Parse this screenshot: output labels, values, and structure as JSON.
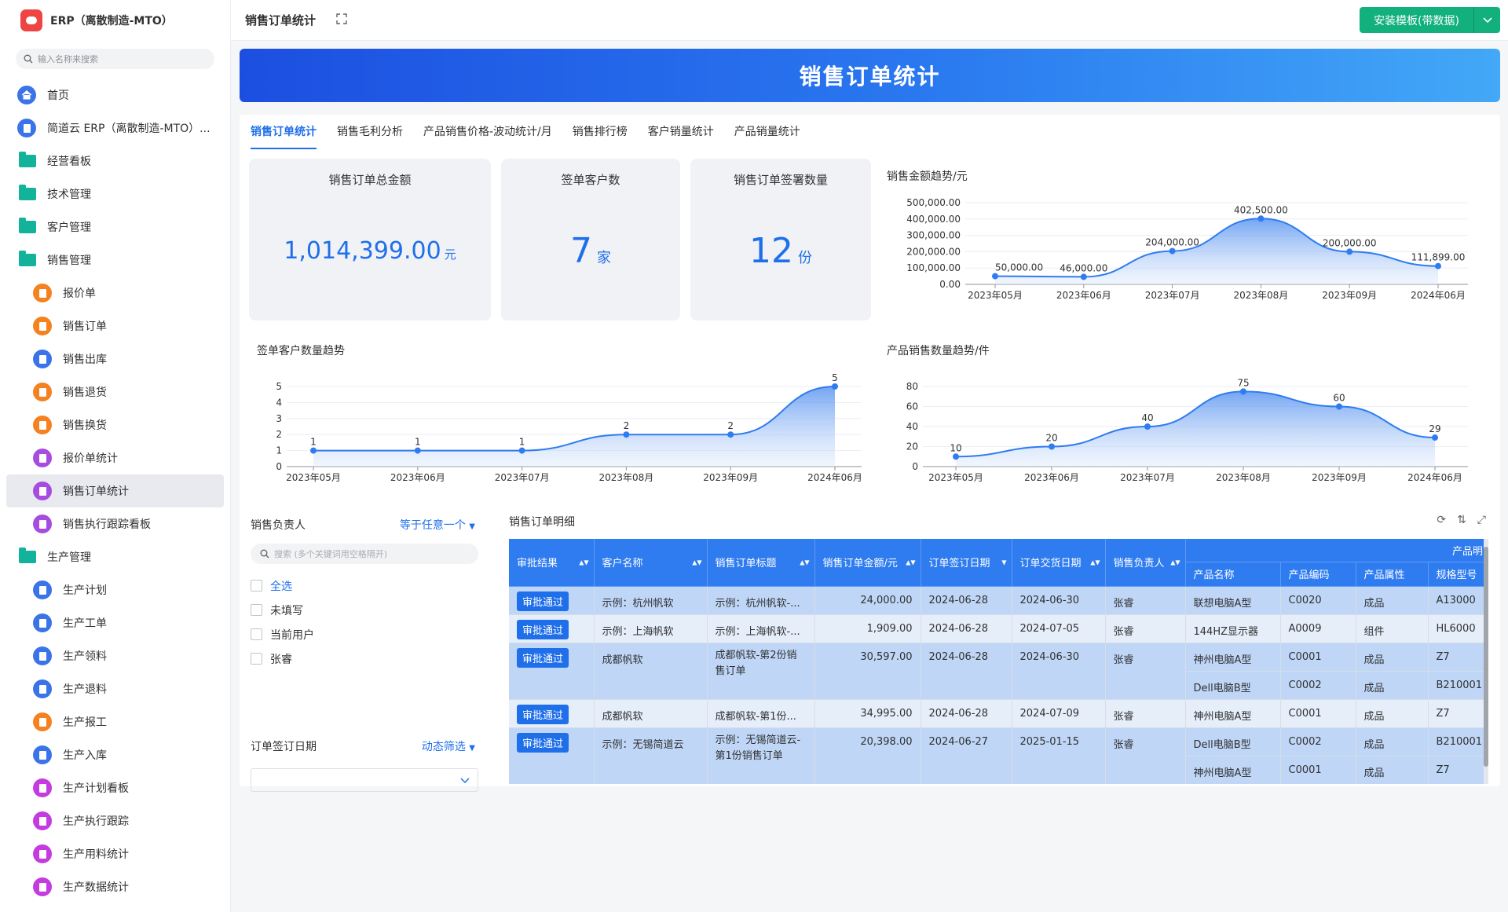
{
  "sidebar": {
    "app_name": "ERP（离散制造-MTO）",
    "search_placeholder": "输入名称来搜索",
    "items": [
      {
        "label": "首页",
        "type": "home",
        "level": 0
      },
      {
        "label": "简道云 ERP（离散制造-MTO）...",
        "type": "doc-blue",
        "level": 0
      },
      {
        "label": "经营看板",
        "type": "folder",
        "level": 0
      },
      {
        "label": "技术管理",
        "type": "folder",
        "level": 0
      },
      {
        "label": "客户管理",
        "type": "folder",
        "level": 0
      },
      {
        "label": "销售管理",
        "type": "folder-open",
        "level": 0
      },
      {
        "label": "报价单",
        "type": "doc-orange",
        "level": 1
      },
      {
        "label": "销售订单",
        "type": "doc-orange",
        "level": 1
      },
      {
        "label": "销售出库",
        "type": "doc-blue",
        "level": 1
      },
      {
        "label": "销售退货",
        "type": "doc-orange",
        "level": 1
      },
      {
        "label": "销售换货",
        "type": "doc-orange",
        "level": 1
      },
      {
        "label": "报价单统计",
        "type": "chart-purple",
        "level": 1
      },
      {
        "label": "销售订单统计",
        "type": "chart-purple",
        "level": 1,
        "active": true
      },
      {
        "label": "销售执行跟踪看板",
        "type": "chart-purple",
        "level": 1
      },
      {
        "label": "生产管理",
        "type": "folder-open",
        "level": 0
      },
      {
        "label": "生产计划",
        "type": "doc-blue",
        "level": 1
      },
      {
        "label": "生产工单",
        "type": "doc-blue",
        "level": 1
      },
      {
        "label": "生产领料",
        "type": "doc-blue",
        "level": 1
      },
      {
        "label": "生产退料",
        "type": "doc-blue",
        "level": 1
      },
      {
        "label": "生产报工",
        "type": "doc-orange",
        "level": 1
      },
      {
        "label": "生产入库",
        "type": "doc-blue",
        "level": 1
      },
      {
        "label": "生产计划看板",
        "type": "board-magenta",
        "level": 1
      },
      {
        "label": "生产执行跟踪",
        "type": "board-magenta",
        "level": 1
      },
      {
        "label": "生产用料统计",
        "type": "board-magenta",
        "level": 1
      },
      {
        "label": "生产数据统计",
        "type": "board-magenta",
        "level": 1
      }
    ]
  },
  "topbar": {
    "title": "销售订单统计",
    "install_button": "安装模板(带数据)"
  },
  "banner": {
    "title": "销售订单统计"
  },
  "tabs": [
    "销售订单统计",
    "销售毛利分析",
    "产品销售价格-波动统计/月",
    "销售排行榜",
    "客户销量统计",
    "产品销量统计"
  ],
  "cards": [
    {
      "title": "销售订单总金额",
      "value": "1,014,399.00",
      "unit": "元"
    },
    {
      "title": "签单客户数",
      "value": "7",
      "unit": "家"
    },
    {
      "title": "销售订单签署数量",
      "value": "12",
      "unit": "份"
    }
  ],
  "chart_data": [
    {
      "type": "area",
      "title": "销售金额趋势/元",
      "categories": [
        "2023年05月",
        "2023年06月",
        "2023年07月",
        "2023年08月",
        "2023年09月",
        "2024年06月"
      ],
      "values": [
        50000,
        46000,
        204000,
        402500,
        200000,
        111899
      ],
      "data_labels": [
        "50,000.00",
        "46,000.00",
        "204,000.00",
        "402,500.00",
        "200,000.00",
        "111,899.00"
      ],
      "y_ticks": [
        "0.00",
        "100,000.00",
        "200,000.00",
        "300,000.00",
        "400,000.00",
        "500,000.00"
      ],
      "ylim": [
        0,
        500000
      ]
    },
    {
      "type": "area",
      "title": "签单客户数量趋势",
      "categories": [
        "2023年05月",
        "2023年06月",
        "2023年07月",
        "2023年08月",
        "2023年09月",
        "2024年06月"
      ],
      "values": [
        1,
        1,
        1,
        2,
        2,
        5
      ],
      "data_labels": [
        "1",
        "1",
        "1",
        "2",
        "2",
        "5"
      ],
      "y_ticks": [
        "0",
        "1",
        "2",
        "3",
        "4",
        "5"
      ],
      "ylim": [
        0,
        5
      ]
    },
    {
      "type": "area",
      "title": "产品销售数量趋势/件",
      "categories": [
        "2023年05月",
        "2023年06月",
        "2023年07月",
        "2023年08月",
        "2023年09月",
        "2024年06月"
      ],
      "values": [
        10,
        20,
        40,
        75,
        60,
        29
      ],
      "data_labels": [
        "10",
        "20",
        "40",
        "75",
        "60",
        "29"
      ],
      "y_ticks": [
        "0",
        "20",
        "40",
        "60",
        "80"
      ],
      "ylim": [
        0,
        80
      ]
    }
  ],
  "filters": {
    "owner": {
      "label": "销售负责人",
      "mode": "等于任意一个",
      "search_placeholder": "搜索 (多个关键词用空格隔开)",
      "options": [
        "全选",
        "未填写",
        "当前用户",
        "张睿"
      ]
    },
    "date": {
      "label": "订单签订日期",
      "mode": "动态筛选"
    }
  },
  "table": {
    "title": "销售订单明细",
    "group_header": "产品明",
    "headers": [
      "审批结果",
      "客户名称",
      "销售订单标题",
      "销售订单金额/元",
      "订单签订日期",
      "订单交货日期",
      "销售负责人"
    ],
    "sub_headers": [
      "产品名称",
      "产品编码",
      "产品属性",
      "规格型号"
    ],
    "rows": [
      {
        "status": "审批通过",
        "customer": "示例：杭州帆软",
        "title": "示例：杭州帆软-...",
        "amount": "24,000.00",
        "sign": "2024-06-28",
        "delivery": "2024-06-30",
        "owner": "张睿",
        "products": [
          [
            "联想电脑A型",
            "C0020",
            "成品",
            "A13000"
          ]
        ]
      },
      {
        "status": "审批通过",
        "customer": "示例：上海帆软",
        "title": "示例：上海帆软-...",
        "amount": "1,909.00",
        "sign": "2024-06-28",
        "delivery": "2024-07-05",
        "owner": "张睿",
        "products": [
          [
            "144HZ显示器",
            "A0009",
            "组件",
            "HL6000"
          ]
        ]
      },
      {
        "status": "审批通过",
        "customer": "成都帆软",
        "title": "成都帆软-第2份销售订单",
        "amount": "30,597.00",
        "sign": "2024-06-28",
        "delivery": "2024-06-30",
        "owner": "张睿",
        "products": [
          [
            "神州电脑A型",
            "C0001",
            "成品",
            "Z7"
          ],
          [
            "Dell电脑B型",
            "C0002",
            "成品",
            "B210001"
          ]
        ]
      },
      {
        "status": "审批通过",
        "customer": "成都帆软",
        "title": "成都帆软-第1份...",
        "amount": "34,995.00",
        "sign": "2024-06-28",
        "delivery": "2024-07-09",
        "owner": "张睿",
        "products": [
          [
            "神州电脑A型",
            "C0001",
            "成品",
            "Z7"
          ]
        ]
      },
      {
        "status": "审批通过",
        "customer": "示例：无锡简道云",
        "title": "示例：无锡简道云-第1份销售订单",
        "amount": "20,398.00",
        "sign": "2024-06-27",
        "delivery": "2025-01-15",
        "owner": "张睿",
        "products": [
          [
            "Dell电脑B型",
            "C0002",
            "成品",
            "B210001"
          ],
          [
            "神州电脑A型",
            "C0001",
            "成品",
            "Z7"
          ]
        ]
      }
    ]
  }
}
